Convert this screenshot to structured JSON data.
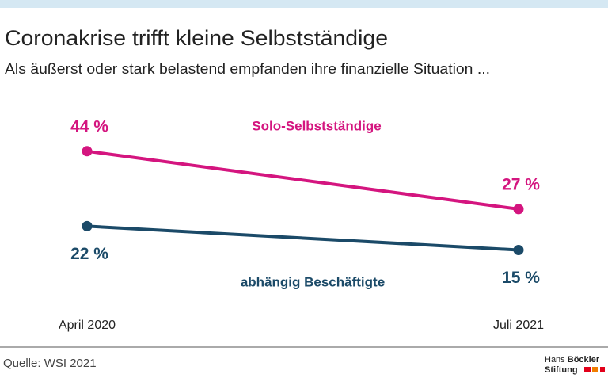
{
  "chart_data": {
    "type": "line",
    "title": "Coronakrise trifft kleine Selbstständige",
    "subtitle": "Als äußerst oder stark belastend empfanden ihre finanzielle Situation ...",
    "categories": [
      "April 2020",
      "Juli 2021"
    ],
    "series": [
      {
        "name": "Solo-Selbstständige",
        "color": "#d4157f",
        "values": [
          44,
          27
        ],
        "value_labels": [
          "44 %",
          "27 %"
        ]
      },
      {
        "name": "abhängig Beschäftigte",
        "color": "#1b4a68",
        "values": [
          22,
          15
        ],
        "value_labels": [
          "22 %",
          "15 %"
        ]
      }
    ],
    "ylim": [
      10,
      50
    ],
    "grid": false
  },
  "footer": {
    "source": "Quelle: WSI 2021",
    "logo": {
      "line1": [
        "Hans",
        "Böckler"
      ],
      "line2": "Stiftung"
    }
  }
}
